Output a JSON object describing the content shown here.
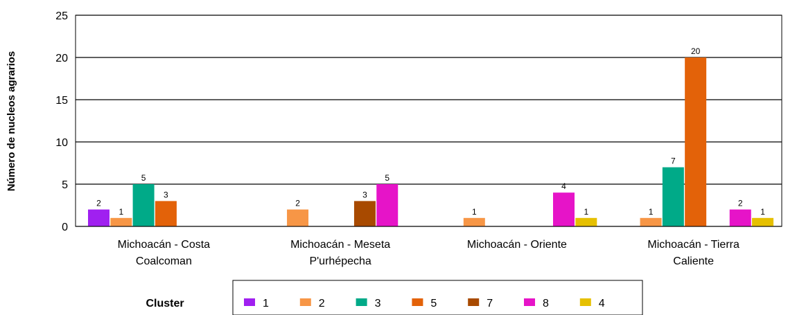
{
  "chart_data": {
    "type": "bar",
    "title": "",
    "ylabel": "Número de nucleos agrarios",
    "xlabel": "",
    "ylim": [
      0,
      25
    ],
    "yticks": [
      0,
      5,
      10,
      15,
      20,
      25
    ],
    "grid": true,
    "legend_title": "Cluster",
    "legend_position": "bottom",
    "categories": [
      [
        "Michoacán - Costa",
        "Coalcoman"
      ],
      [
        "Michoacán - Meseta",
        "P'urhépecha"
      ],
      [
        "Michoacán - Oriente"
      ],
      [
        "Michoacán - Tierra",
        "Caliente"
      ]
    ],
    "series": [
      {
        "name": "1",
        "color": "#a020f0",
        "values": [
          2,
          null,
          null,
          null
        ]
      },
      {
        "name": "2",
        "color": "#f79646",
        "values": [
          1,
          2,
          1,
          1
        ]
      },
      {
        "name": "3",
        "color": "#00aa88",
        "values": [
          5,
          null,
          null,
          7
        ]
      },
      {
        "name": "5",
        "color": "#e36209",
        "values": [
          3,
          null,
          null,
          20
        ]
      },
      {
        "name": "7",
        "color": "#a84a00",
        "values": [
          null,
          3,
          null,
          null
        ]
      },
      {
        "name": "8",
        "color": "#e614c8",
        "values": [
          null,
          5,
          4,
          2
        ]
      },
      {
        "name": "4",
        "color": "#e6c000",
        "values": [
          null,
          null,
          1,
          1
        ]
      }
    ]
  }
}
